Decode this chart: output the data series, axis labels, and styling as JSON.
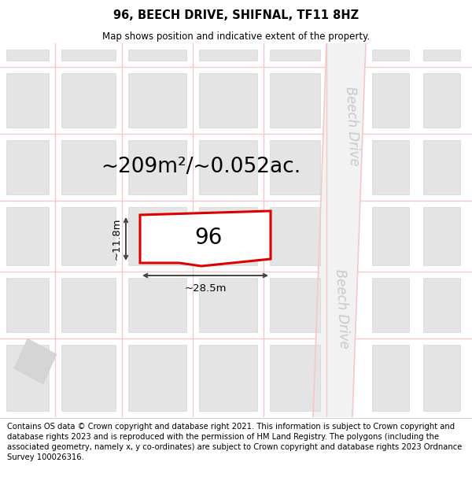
{
  "title": "96, BEECH DRIVE, SHIFNAL, TF11 8HZ",
  "subtitle": "Map shows position and indicative extent of the property.",
  "footer": "Contains OS data © Crown copyright and database right 2021. This information is subject to Crown copyright and database rights 2023 and is reproduced with the permission of HM Land Registry. The polygons (including the associated geometry, namely x, y co-ordinates) are subject to Crown copyright and database rights 2023 Ordnance Survey 100026316.",
  "area_label": "~209m²/~0.052ac.",
  "width_label": "~28.5m",
  "height_label": "~11.8m",
  "number_label": "96",
  "road_color": "#f5c8c8",
  "block_color": "#e4e4e4",
  "block_edge_color": "#d0d0d0",
  "road_label_color": "#c8c8c8",
  "plot_outline_color": "#dd0000",
  "dim_line_color": "#444444",
  "title_fontsize": 10.5,
  "subtitle_fontsize": 8.5,
  "footer_fontsize": 7.2,
  "area_fontsize": 19,
  "dim_fontsize": 9.5,
  "number_fontsize": 20,
  "road_label_fontsize": 12
}
